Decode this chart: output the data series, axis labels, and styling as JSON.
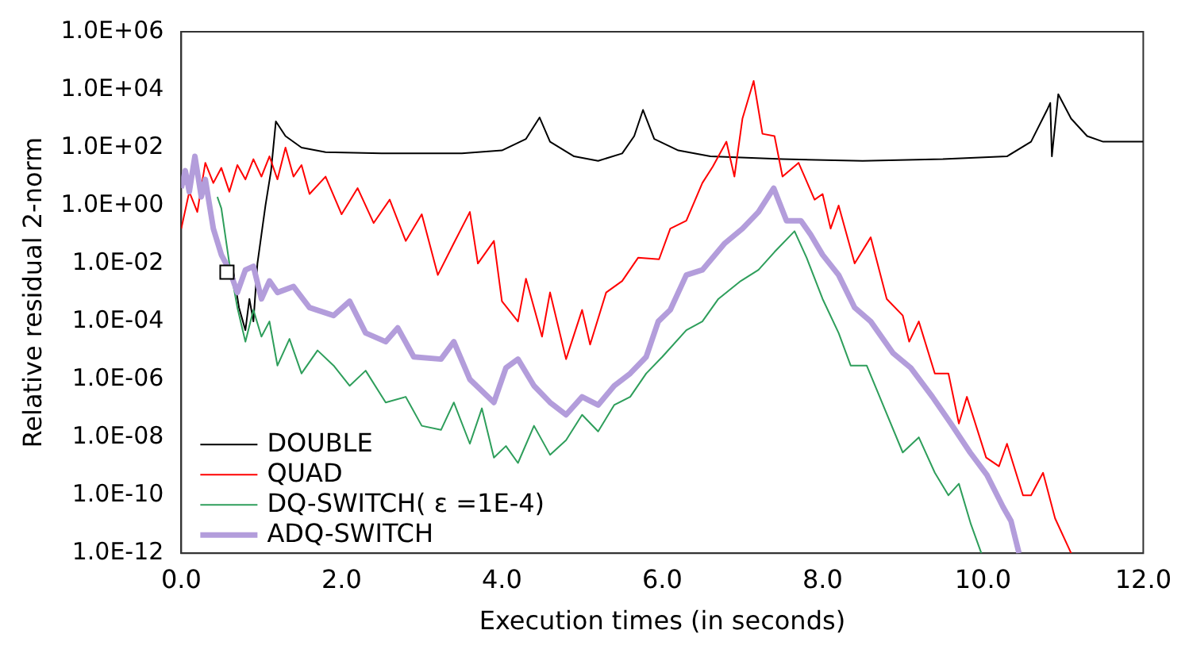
{
  "chart_data": {
    "type": "line",
    "xlabel": "Execution times (in seconds)",
    "ylabel": "Relative residual 2-norm",
    "xlim": [
      0,
      12
    ],
    "xticks": [
      {
        "value": 0,
        "label": "0.0"
      },
      {
        "value": 2,
        "label": "2.0"
      },
      {
        "value": 4,
        "label": "4.0"
      },
      {
        "value": 6,
        "label": "6.0"
      },
      {
        "value": 8,
        "label": "8.0"
      },
      {
        "value": 10,
        "label": "10.0"
      },
      {
        "value": 12,
        "label": "12.0"
      }
    ],
    "ylim": [
      1e-12,
      1000000.0
    ],
    "yticks": [
      {
        "value": 1e-12,
        "label": "1.0E-12"
      },
      {
        "value": 1e-10,
        "label": "1.0E-10"
      },
      {
        "value": 1e-08,
        "label": "1.0E-08"
      },
      {
        "value": 1e-06,
        "label": "1.0E-06"
      },
      {
        "value": 0.0001,
        "label": "1.0E-04"
      },
      {
        "value": 0.01,
        "label": "1.0E-02"
      },
      {
        "value": 1,
        "label": "1.0E+00"
      },
      {
        "value": 100,
        "label": "1.0E+02"
      },
      {
        "value": 10000,
        "label": "1.0E+04"
      },
      {
        "value": 1000000,
        "label": "1.0E+06"
      }
    ],
    "log": "y",
    "grid": false,
    "legend": "bottom left",
    "marker": "none",
    "line_style": "solid",
    "series": [
      {
        "name": "DOUBLE",
        "color": "#000000",
        "x": [
          0.65,
          0.72,
          0.8,
          0.85,
          0.9,
          0.95,
          1.0,
          1.05,
          1.12,
          1.18,
          1.3,
          1.5,
          1.8,
          2.5,
          3.5,
          4.0,
          4.3,
          4.47,
          4.6,
          4.9,
          5.2,
          5.5,
          5.65,
          5.76,
          5.9,
          6.2,
          6.6,
          7.5,
          8.5,
          9.5,
          10.3,
          10.6,
          10.8,
          10.84,
          10.86,
          10.94,
          11.1,
          11.3,
          11.5,
          12.0
        ],
        "values": [
          0.005,
          0.0003,
          5e-05,
          0.0006,
          0.0001,
          0.01,
          0.1,
          1,
          16,
          800,
          250,
          100,
          70,
          63,
          63,
          80,
          200,
          1100,
          160,
          50,
          35,
          63,
          250,
          2000,
          200,
          80,
          50,
          40,
          35,
          40,
          50,
          160,
          2000,
          3500,
          50,
          7000,
          1000,
          250,
          160,
          160
        ]
      },
      {
        "name": "QUAD",
        "color": "#ff0000",
        "x": [
          0,
          0.1,
          0.2,
          0.3,
          0.4,
          0.5,
          0.6,
          0.7,
          0.8,
          0.9,
          1.0,
          1.1,
          1.2,
          1.3,
          1.4,
          1.5,
          1.6,
          1.8,
          2.0,
          2.2,
          2.4,
          2.6,
          2.8,
          3.0,
          3.2,
          3.4,
          3.6,
          3.7,
          3.9,
          4.0,
          4.2,
          4.3,
          4.5,
          4.6,
          4.8,
          5.0,
          5.1,
          5.3,
          5.5,
          5.7,
          5.96,
          6.1,
          6.3,
          6.5,
          6.63,
          6.8,
          6.9,
          7.0,
          7.14,
          7.25,
          7.4,
          7.5,
          7.7,
          7.9,
          8.0,
          8.1,
          8.2,
          8.4,
          8.6,
          8.8,
          9.0,
          9.08,
          9.2,
          9.4,
          9.57,
          9.7,
          9.8,
          10.04,
          10.2,
          10.3,
          10.5,
          10.6,
          10.75,
          10.9,
          11.1
        ],
        "values": [
          0.16,
          3,
          0.6,
          30,
          6,
          20,
          3,
          25,
          8,
          40,
          10,
          50,
          8,
          100,
          10,
          25,
          2.5,
          10,
          0.5,
          4,
          0.25,
          1.6,
          0.06,
          0.5,
          0.004,
          0.05,
          0.6,
          0.01,
          0.06,
          0.0005,
          0.0001,
          0.003,
          3e-05,
          0.001,
          5e-06,
          0.00025,
          1.6e-05,
          0.001,
          0.0025,
          0.016,
          0.014,
          0.16,
          0.3,
          6,
          22,
          160,
          10,
          1000,
          20000,
          300,
          250,
          10,
          30,
          1.6,
          2.5,
          0.16,
          1,
          0.01,
          0.08,
          0.0006,
          0.00016,
          2e-05,
          0.0001,
          1.6e-06,
          1.6e-06,
          3e-08,
          2.5e-07,
          2e-09,
          1e-09,
          6e-09,
          1e-10,
          1e-10,
          6e-10,
          1.6e-11,
          1e-12
        ]
      },
      {
        "name": "DQ-SWITCH( ε =1E-4)",
        "color": "#2e9e5b",
        "x": [
          0.45,
          0.5,
          0.6,
          0.7,
          0.8,
          0.9,
          1.0,
          1.1,
          1.2,
          1.35,
          1.5,
          1.7,
          1.9,
          2.1,
          2.3,
          2.55,
          2.8,
          3.0,
          3.24,
          3.4,
          3.6,
          3.75,
          3.9,
          4.05,
          4.2,
          4.4,
          4.6,
          4.8,
          5.0,
          5.2,
          5.4,
          5.6,
          5.8,
          6.0,
          6.3,
          6.5,
          6.7,
          6.98,
          7.2,
          7.4,
          7.65,
          7.8,
          8.0,
          8.2,
          8.35,
          8.55,
          8.7,
          9.0,
          9.2,
          9.4,
          9.57,
          9.7,
          9.85,
          9.98
        ],
        "values": [
          2,
          0.8,
          0.01,
          0.0003,
          2e-05,
          0.00025,
          3e-05,
          0.0001,
          3e-06,
          2.5e-05,
          1.6e-06,
          1e-05,
          3e-06,
          6e-07,
          2e-06,
          1.6e-07,
          2.5e-07,
          2.5e-08,
          1.8e-08,
          1.6e-07,
          6e-09,
          1e-07,
          2e-09,
          5e-09,
          1.3e-09,
          2.5e-08,
          2.5e-09,
          8e-09,
          6e-08,
          1.6e-08,
          1.3e-07,
          2.5e-07,
          1.6e-06,
          6e-06,
          5e-05,
          0.0001,
          0.0006,
          0.0025,
          0.006,
          0.025,
          0.13,
          0.016,
          0.0006,
          4e-05,
          3e-06,
          3e-06,
          3e-07,
          3e-09,
          1e-08,
          6e-10,
          1e-10,
          2.5e-10,
          1e-11,
          1e-12
        ]
      },
      {
        "name": "ADQ-SWITCH",
        "color": "#b39ddb",
        "x": [
          0,
          0.05,
          0.1,
          0.17,
          0.25,
          0.3,
          0.4,
          0.5,
          0.6,
          0.7,
          0.8,
          0.9,
          1.0,
          1.1,
          1.2,
          1.4,
          1.6,
          1.9,
          2.1,
          2.3,
          2.55,
          2.7,
          2.9,
          3.24,
          3.4,
          3.6,
          3.9,
          4.05,
          4.2,
          4.4,
          4.6,
          4.8,
          5.0,
          5.2,
          5.4,
          5.6,
          5.8,
          5.95,
          6.1,
          6.3,
          6.5,
          6.78,
          7.0,
          7.2,
          7.39,
          7.55,
          7.73,
          7.85,
          8.0,
          8.2,
          8.4,
          8.6,
          8.88,
          9.1,
          9.37,
          9.6,
          9.84,
          10.05,
          10.25,
          10.35,
          10.45
        ],
        "values": [
          4,
          16,
          3,
          50,
          2,
          8,
          0.16,
          0.02,
          0.006,
          0.001,
          0.006,
          0.008,
          0.0006,
          0.0025,
          0.001,
          0.0016,
          0.0003,
          0.00016,
          0.0005,
          4e-05,
          2e-05,
          6e-05,
          6e-06,
          5e-06,
          2e-05,
          1e-06,
          1.6e-07,
          2.5e-06,
          5e-06,
          6e-07,
          1.6e-07,
          6e-08,
          2.5e-07,
          1.3e-07,
          6e-07,
          1.6e-06,
          6e-06,
          0.0001,
          0.00025,
          0.004,
          0.006,
          0.05,
          0.16,
          0.6,
          4,
          0.3,
          0.3,
          0.1,
          0.02,
          0.004,
          0.0003,
          0.0001,
          8e-06,
          2.5e-06,
          2.5e-07,
          3e-08,
          3e-09,
          5e-10,
          4e-11,
          1.3e-11,
          1e-12
        ]
      },
      {
        "type": "scatter",
        "marker": "square",
        "color": "#000000",
        "x": [
          0.57
        ],
        "values": [
          0.005
        ]
      }
    ]
  }
}
